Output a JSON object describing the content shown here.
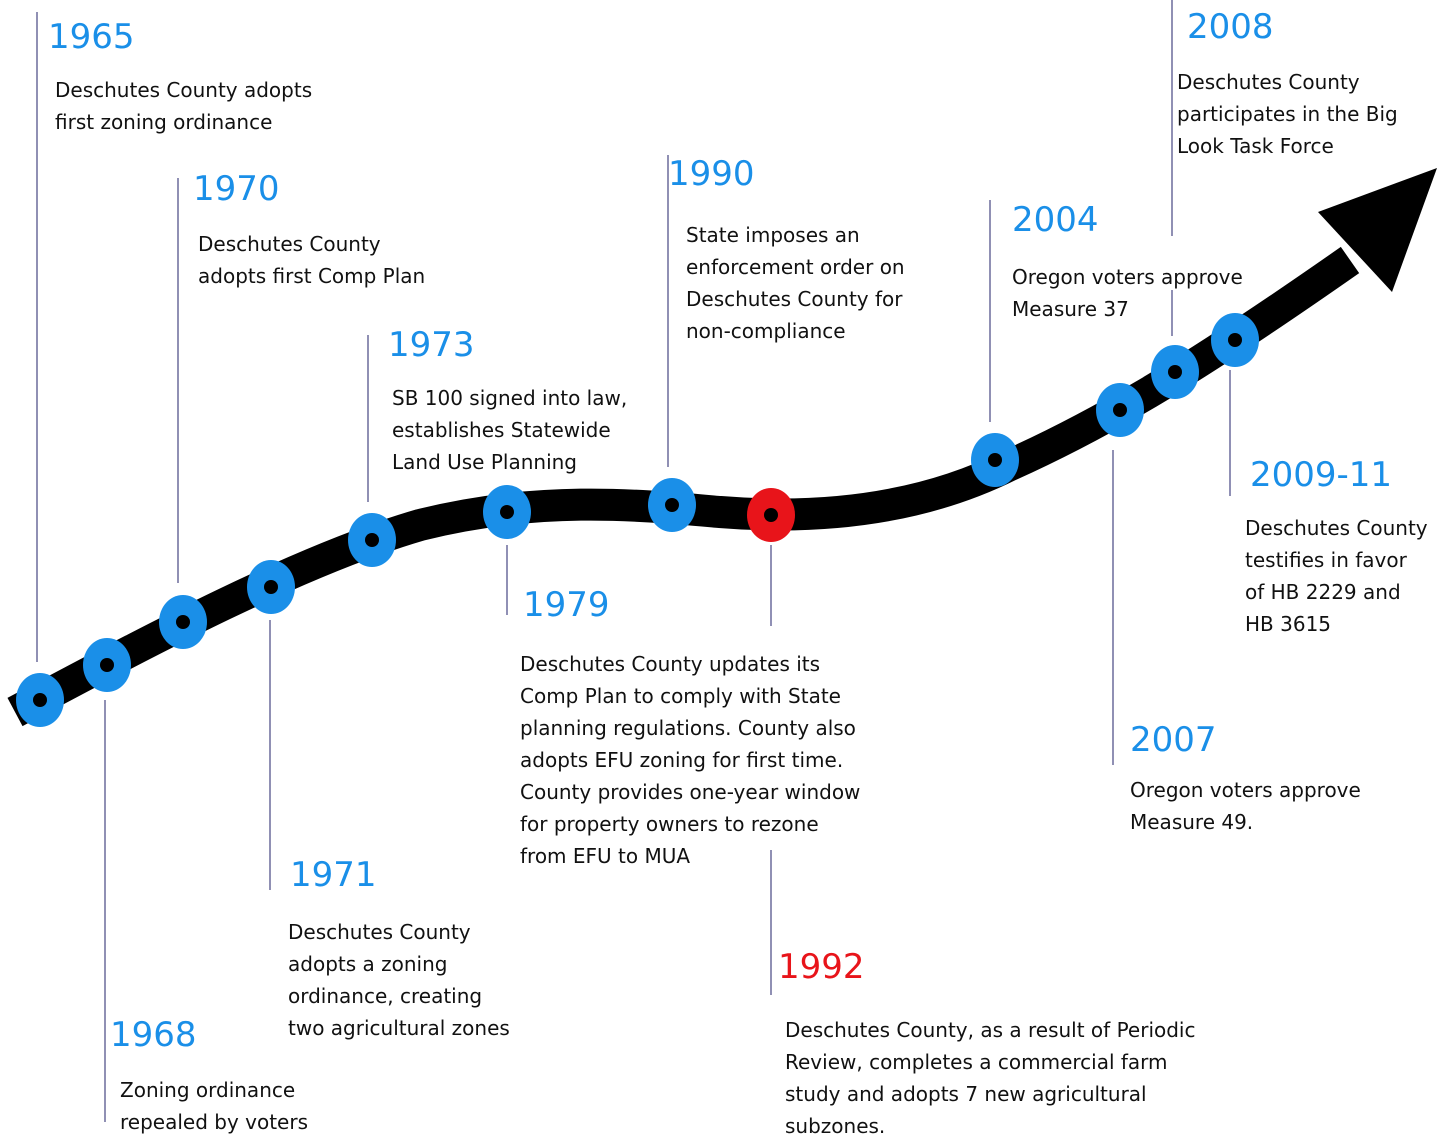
{
  "events": [
    {
      "year": "1965",
      "lines": [
        "Deschutes County adopts",
        "first zoning ordinance"
      ]
    },
    {
      "year": "1968",
      "lines": [
        "Zoning ordinance",
        "repealed by voters"
      ]
    },
    {
      "year": "1970",
      "lines": [
        "Deschutes County",
        "adopts first Comp Plan"
      ]
    },
    {
      "year": "1971",
      "lines": [
        "Deschutes County",
        "adopts a zoning",
        "ordinance, creating",
        "two agricultural zones"
      ]
    },
    {
      "year": "1973",
      "lines": [
        "SB 100 signed into law,",
        "establishes Statewide",
        "Land Use Planning"
      ]
    },
    {
      "year": "1979",
      "lines": [
        "Deschutes County updates its",
        "Comp Plan to comply with State",
        "planning regulations. County also",
        "adopts EFU zoning for first time.",
        "County provides one-year window",
        "for property owners to rezone",
        "from EFU to MUA"
      ]
    },
    {
      "year": "1990",
      "lines": [
        "State imposes an",
        "enforcement order on",
        "Deschutes County for",
        "non-compliance"
      ]
    },
    {
      "year": "1992",
      "lines": [
        "Deschutes County, as a result of Periodic",
        "Review, completes a commercial farm",
        "study and adopts 7 new agricultural",
        "subzones."
      ]
    },
    {
      "year": "2004",
      "lines": [
        "Oregon voters approve",
        "Measure 37"
      ]
    },
    {
      "year": "2007",
      "lines": [
        "Oregon voters approve",
        "Measure 49."
      ]
    },
    {
      "year": "2008",
      "lines": [
        "Deschutes County",
        "participates in the Big",
        "Look Task Force"
      ]
    },
    {
      "year": "2009-11",
      "lines": [
        "Deschutes County",
        "testifies in favor",
        "of HB 2229 and",
        "HB 3615"
      ]
    }
  ]
}
